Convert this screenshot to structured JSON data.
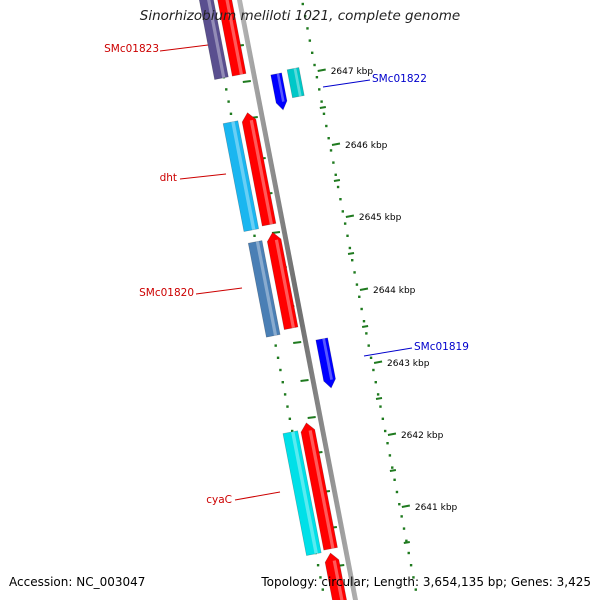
{
  "title": "Sinorhizobium meliloti 1021, complete genome",
  "footer": {
    "accession": "Accession: NC_003047",
    "summary": "Topology: circular; Length: 3,654,135 bp; Genes: 3,425"
  },
  "colors": {
    "background": "#ffffff",
    "backbone": "#808080",
    "forward_cds": "#ff0000",
    "reverse_cds": "#0000ff",
    "reverse_label": "#0000cc",
    "forward_label": "#cc0000",
    "tick": "#1f7a1f",
    "tick_label": "#000000"
  },
  "scale": {
    "unit": "kbp",
    "ticks": [
      {
        "kbp": 2647,
        "label": "2647 kbp"
      },
      {
        "kbp": 2646,
        "label": "2646 kbp"
      },
      {
        "kbp": 2645,
        "label": "2645 kbp"
      },
      {
        "kbp": 2644,
        "label": "2644 kbp"
      },
      {
        "kbp": 2643,
        "label": "2643 kbp"
      },
      {
        "kbp": 2642,
        "label": "2642 kbp"
      },
      {
        "kbp": 2641,
        "label": "2641 kbp"
      }
    ]
  },
  "genes": [
    {
      "name": "SMc01823",
      "strand": "forward",
      "color": "#5a4f8f"
    },
    {
      "name": "SMc01822",
      "strand": "reverse",
      "color": "#00c8c8"
    },
    {
      "name": "dht",
      "strand": "forward",
      "color": "#1ab6f0"
    },
    {
      "name": "SMc01820",
      "strand": "forward",
      "color": "#4a7fb5"
    },
    {
      "name": "SMc01819",
      "strand": "reverse",
      "color": "#0000ff"
    },
    {
      "name": "cyaC",
      "strand": "forward",
      "color": "#00e0e8"
    }
  ]
}
